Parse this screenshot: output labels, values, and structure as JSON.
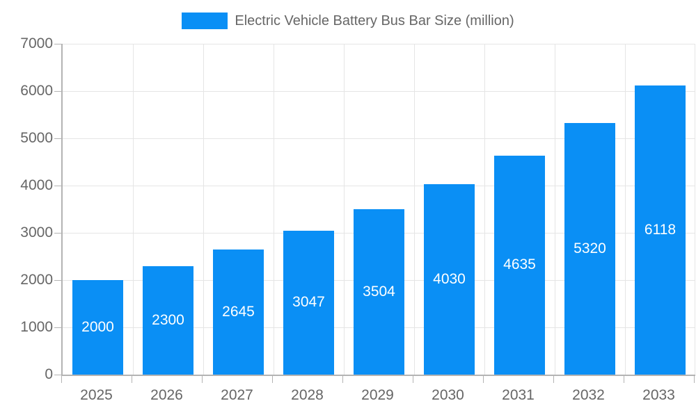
{
  "chart_data": {
    "type": "bar",
    "legend_label": "Electric Vehicle Battery Bus Bar Size (million)",
    "legend_position": "top",
    "categories": [
      "2025",
      "2026",
      "2027",
      "2028",
      "2029",
      "2030",
      "2031",
      "2032",
      "2033"
    ],
    "values": [
      2000,
      2300,
      2645,
      3047,
      3504,
      4030,
      4635,
      5320,
      6118
    ],
    "yticks": [
      0,
      1000,
      2000,
      3000,
      4000,
      5000,
      6000,
      7000
    ],
    "ylim": [
      0,
      7000
    ],
    "xlabel": "",
    "ylabel": "",
    "grid": true,
    "bar_color": "#0a8ff5",
    "value_label_color": "#ffffff",
    "grid_color": "#e5e5e5",
    "axis_color": "#b3b3b3",
    "tick_text_color": "#666666"
  }
}
